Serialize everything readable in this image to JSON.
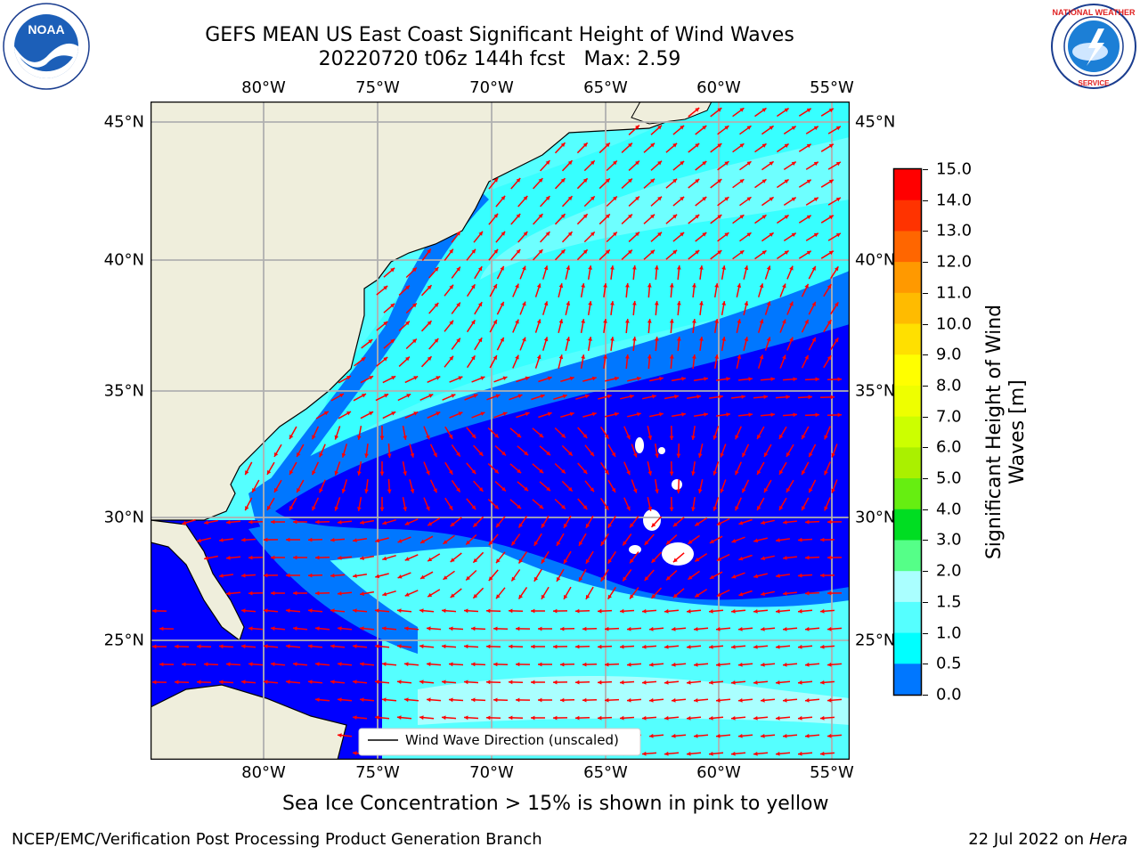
{
  "title": {
    "line1": "GEFS MEAN US East Coast Significant Height of Wind Waves",
    "line2": "20220720 t06z 144h fcst   Max: 2.59"
  },
  "map": {
    "lon_ticks": [
      "80°W",
      "75°W",
      "70°W",
      "65°W",
      "60°W",
      "55°W"
    ],
    "lat_ticks": [
      "45°N",
      "40°N",
      "35°N",
      "30°N",
      "25°N"
    ],
    "legend_label": "Wind Wave Direction (unscaled)",
    "arrow_color": "#ff0000",
    "land_color": "#efeedc",
    "grid_color": "#b0b0b0"
  },
  "colorbar": {
    "title": "Significant Height of Wind Waves [m]",
    "title_line1": "Significant Height of Wind",
    "title_line2": "Waves [m]",
    "labels": [
      "15.0",
      "14.0",
      "13.0",
      "12.0",
      "11.0",
      "10.0",
      "9.0",
      "8.0",
      "7.0",
      "6.0",
      "5.0",
      "4.0",
      "3.0",
      "2.0",
      "1.5",
      "1.0",
      "0.5",
      "0.0"
    ],
    "colors": [
      "#ff0000",
      "#ff3300",
      "#ff6600",
      "#ff9900",
      "#ffbb00",
      "#ffe000",
      "#ffff00",
      "#eeff00",
      "#ccff00",
      "#aaf000",
      "#66ee11",
      "#00dd22",
      "#55ff88",
      "#aaffff",
      "#55ffff",
      "#00ffff",
      "#0077ff",
      "#0000ff"
    ]
  },
  "notes": {
    "sea_ice": "Sea Ice Concentration > 15% is shown in pink to yellow",
    "footer_left": "NCEP/EMC/Verification Post Processing Product Generation Branch",
    "footer_right_date": "22 Jul 2022 on ",
    "footer_right_machine": "Hera"
  },
  "logos": {
    "left": "NOAA",
    "right": "NATIONAL WEATHER SERVICE"
  }
}
